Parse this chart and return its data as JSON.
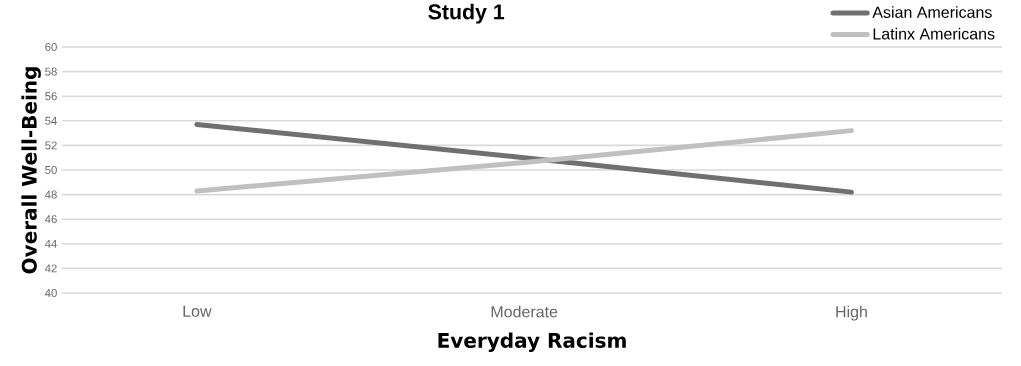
{
  "chart_data": {
    "type": "line",
    "title": "Study 1",
    "xlabel": "Everyday Racism",
    "ylabel": "Overall Well-Being",
    "categories": [
      "Low",
      "Moderate",
      "High"
    ],
    "series": [
      {
        "name": "Asian Americans",
        "color": "#707070",
        "values": [
          53.7,
          51.0,
          48.2
        ]
      },
      {
        "name": "Latinx Americans",
        "color": "#c0c0c0",
        "values": [
          48.3,
          50.6,
          53.2
        ]
      }
    ],
    "ylim": [
      40,
      60
    ],
    "yticks": [
      40,
      42,
      44,
      46,
      48,
      50,
      52,
      54,
      56,
      58,
      60
    ],
    "grid": "y",
    "legend": "top right",
    "marker": "none",
    "line_style": "solid"
  }
}
